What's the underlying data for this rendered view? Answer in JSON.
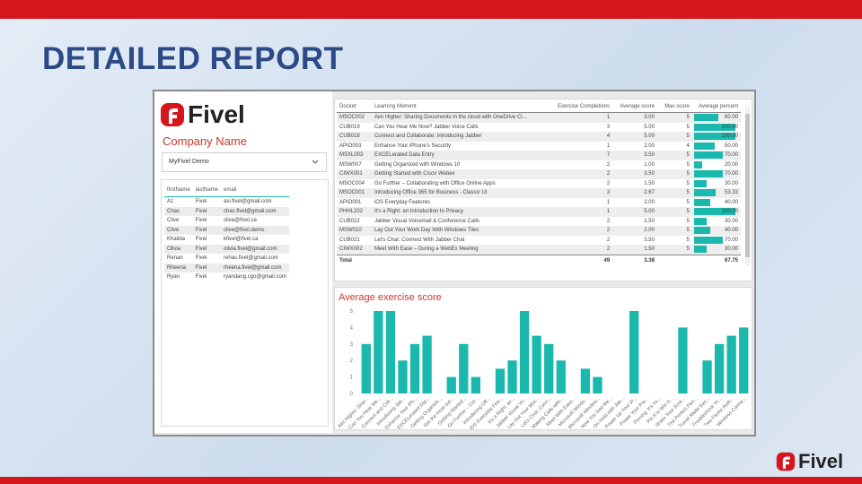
{
  "slide": {
    "title": "DETAILED REPORT",
    "logo": "Fivel"
  },
  "dashboard": {
    "logo": "Fivel",
    "filter_label": "Company Name",
    "filter_value": "MyFivel Demo",
    "people": {
      "columns": [
        "firstName",
        "lastName",
        "email"
      ],
      "rows": [
        [
          "Az",
          "Fivel",
          "asi.fivel@gmail.com"
        ],
        [
          "Chas",
          "Fivel",
          "chas.fivel@gmail.com"
        ],
        [
          "Clive",
          "Fivel",
          "clive@fivel.ca"
        ],
        [
          "Clive",
          "Fivel",
          "clive@fivel.demo"
        ],
        [
          "Khalida",
          "Fivel",
          "kfivel@fivel.ca"
        ],
        [
          "Olivia",
          "Fivel",
          "olivia.fivel@gmail.com"
        ],
        [
          "Renan",
          "Fivel",
          "rehas.fivel@gmail.com"
        ],
        [
          "Rheena",
          "Fivel",
          "rheena.fivel@gmail.com"
        ],
        [
          "Ryan",
          "Fivel",
          "ryandang.cgo@gmail.com"
        ]
      ]
    },
    "report": {
      "columns": [
        "Docket",
        "Learning Moment",
        "Exercise Completions",
        "Average score",
        "Max score",
        "Average percent"
      ],
      "rows": [
        [
          "MSOC002",
          "Aim Higher: Sharing Documents in the cloud with OneDrive Cl...",
          "1",
          "3.00",
          "5",
          "60.00"
        ],
        [
          "CUB019",
          "Can You Hear Me Now? Jabber Voice Calls",
          "3",
          "5.00",
          "5",
          "100.00"
        ],
        [
          "CUB018",
          "Connect and Collaborate: Introducing Jabber",
          "4",
          "5.00",
          "5",
          "100.00"
        ],
        [
          "APIO003",
          "Enhance Your iPhone's Security",
          "1",
          "2.00",
          "4",
          "50.00"
        ],
        [
          "MSXL003",
          "EXCELerated Data Entry",
          "7",
          "3.50",
          "5",
          "70.00"
        ],
        [
          "MSW007",
          "Getting Organized with Windows 10",
          "2",
          "1.00",
          "5",
          "20.00"
        ],
        [
          "CIWX001",
          "Getting Started with Cisco Webex",
          "2",
          "3.50",
          "5",
          "70.00"
        ],
        [
          "MSOC004",
          "Go Further – Collaborating with Office Online Apps",
          "2",
          "1.50",
          "5",
          "30.00"
        ],
        [
          "MSOC001",
          "Introducing Office 365 for Business - Classic UI",
          "3",
          "2.67",
          "5",
          "53.33"
        ],
        [
          "APIO001",
          "iOS Everyday Features",
          "1",
          "2.00",
          "5",
          "40.00"
        ],
        [
          "PHHL202",
          "It's a Right: an Introduction to Privacy",
          "1",
          "5.00",
          "5",
          "100.00"
        ],
        [
          "CUB022",
          "Jabber Visual Voicemail & Conference Calls",
          "2",
          "1.50",
          "5",
          "30.00"
        ],
        [
          "MSW010",
          "Lay Out Your Work Day With Windows Tiles",
          "2",
          "2.00",
          "5",
          "40.00"
        ],
        [
          "CUB021",
          "Let's Chat: Connect With Jabber Chat",
          "2",
          "3.50",
          "5",
          "70.00"
        ],
        [
          "CIWX002",
          "Meet With Ease – During a WebEx Meeting",
          "2",
          "1.50",
          "5",
          "30.00"
        ]
      ],
      "total": {
        "label": "Total",
        "completions": "49",
        "average_score": "3.38",
        "average_percent": "67.75"
      }
    }
  },
  "chart_data": {
    "type": "bar",
    "title": "Average exercise score",
    "color": "#1ab8ad",
    "categories": [
      "Aim Higher: Shar...",
      "Can You Hear Me...",
      "Connect and Coll...",
      "Introducing Jab...",
      "Enhance Your iPh...",
      "EXCELerated Dat...",
      "Getting Organize...",
      "Get the most out...",
      "Getting Started...",
      "Go Further – Col...",
      "Introducing Off...",
      "iOS Everyday Fea...",
      "It's a Right: an...",
      "Jabber Visual Vo...",
      "Lay Out Your Wor...",
      "Let's Chat: Conn...",
      "Making Calls with...",
      "Meet With Ease...",
      "Microsoft Windo...",
      "Microsoft Window...",
      "Now You See Me...",
      "On Hold with Jab...",
      "Power Up Your iP...",
      "Power Your Pre...",
      "Pinning: It's Yo...",
      "Pin It to Win It...",
      "Share Your Scre...",
      "The Perfect Peri...",
      "Travel Made Eas...",
      "Troubleshoot Yo...",
      "Two Factor Auth...",
      "Wireless Conne..."
    ],
    "values": [
      3,
      5,
      5,
      2,
      3,
      3.5,
      0,
      1,
      3,
      1,
      0,
      1.5,
      2,
      5,
      3.5,
      3,
      2,
      0,
      1.5,
      1,
      0,
      0,
      5,
      0,
      0,
      0,
      4,
      0,
      2,
      3,
      3.5,
      4
    ],
    "ylim": [
      0,
      5
    ],
    "yticks": [
      0,
      1,
      2,
      3,
      4,
      5
    ],
    "grid": false
  }
}
